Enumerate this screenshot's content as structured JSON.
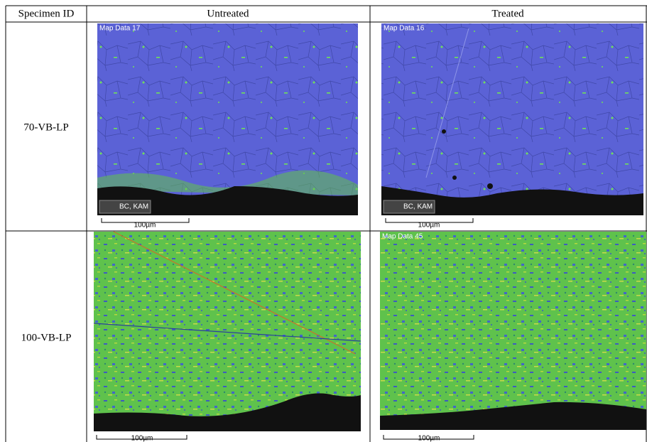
{
  "header": {
    "columns": [
      "Specimen ID",
      "Untreated",
      "Treated"
    ]
  },
  "rows": [
    {
      "specimen_id": "70-VB-LP",
      "untreated": {
        "map_label": "Map Data 17",
        "overlay_label": "BC, KAM",
        "scale_bar": "100µm"
      },
      "treated": {
        "map_label": "Map Data 16",
        "overlay_label": "BC, KAM",
        "scale_bar": "100µm"
      }
    },
    {
      "specimen_id": "100-VB-LP",
      "untreated": {
        "scale_bar": "100µm"
      },
      "treated": {
        "map_label": "Map Data 45",
        "scale_bar": "100µm"
      }
    }
  ]
}
